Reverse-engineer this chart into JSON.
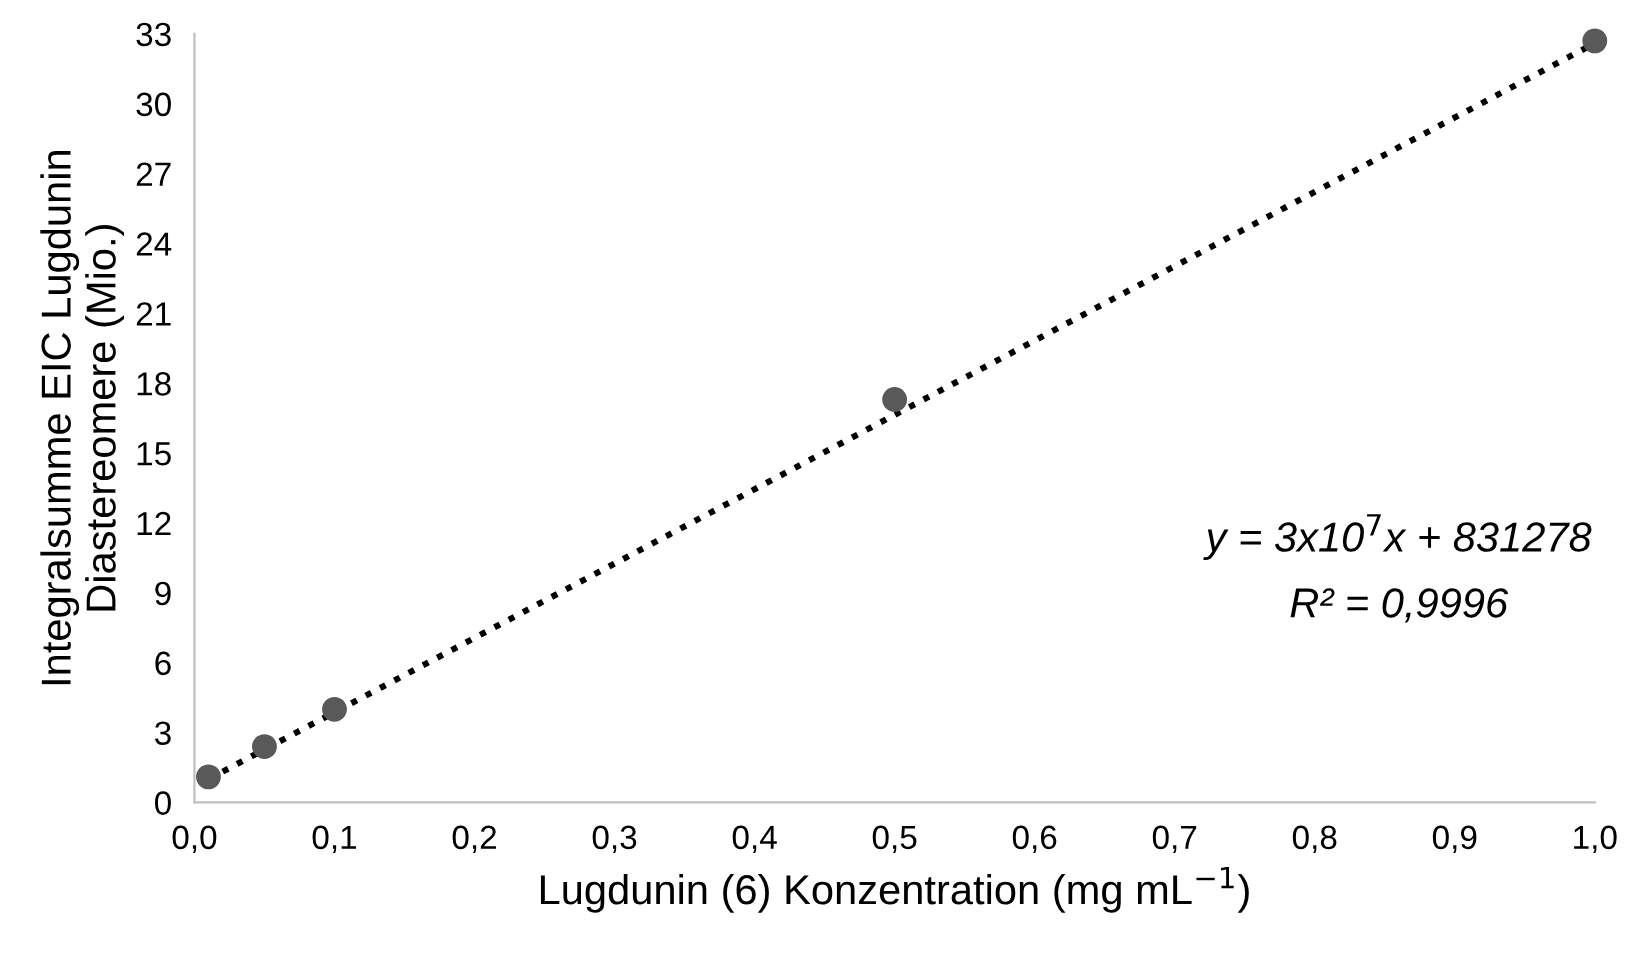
{
  "chart_data": {
    "type": "scatter",
    "xlabel": "Lugdunin (6) Konzentration (mg mL$^{−1}$)",
    "ylabel": "Integralsumme EIC Lugdunin\nDiastereomere (Mio.)",
    "series": [
      {
        "color": "#595959",
        "marker": "circle",
        "x": [
          0.01,
          0.05,
          0.1,
          0.5,
          1.0
        ],
        "values": [
          1.1,
          2.4,
          4.0,
          17.3,
          32.7
        ]
      },
      {
        "type": "line",
        "color": "#000000",
        "line_style": "dotted",
        "marker": "none",
        "x": [
          0.01,
          1.0
        ],
        "values": [
          1.0,
          32.6
        ]
      }
    ],
    "annotations": [
      "y = 3x10$^{7}$x + 831278",
      "R² = 0,9996"
    ],
    "xlim": [
      0,
      1.0
    ],
    "xticks": [
      {
        "value": 0,
        "label": "0,0"
      },
      {
        "value": 0.1,
        "label": "0,1"
      },
      {
        "value": 0.2,
        "label": "0,2"
      },
      {
        "value": 0.3,
        "label": "0,3"
      },
      {
        "value": 0.4,
        "label": "0,4"
      },
      {
        "value": 0.5,
        "label": "0,5"
      },
      {
        "value": 0.6,
        "label": "0,6"
      },
      {
        "value": 0.7,
        "label": "0,7"
      },
      {
        "value": 0.8,
        "label": "0,8"
      },
      {
        "value": 0.9,
        "label": "0,9"
      },
      {
        "value": 1.0,
        "label": "1,0"
      }
    ],
    "ylim": [
      0,
      33
    ],
    "yticks": [
      0,
      3,
      6,
      9,
      12,
      15,
      18,
      21,
      24,
      27,
      30,
      33
    ],
    "grid": false,
    "legend": false
  }
}
